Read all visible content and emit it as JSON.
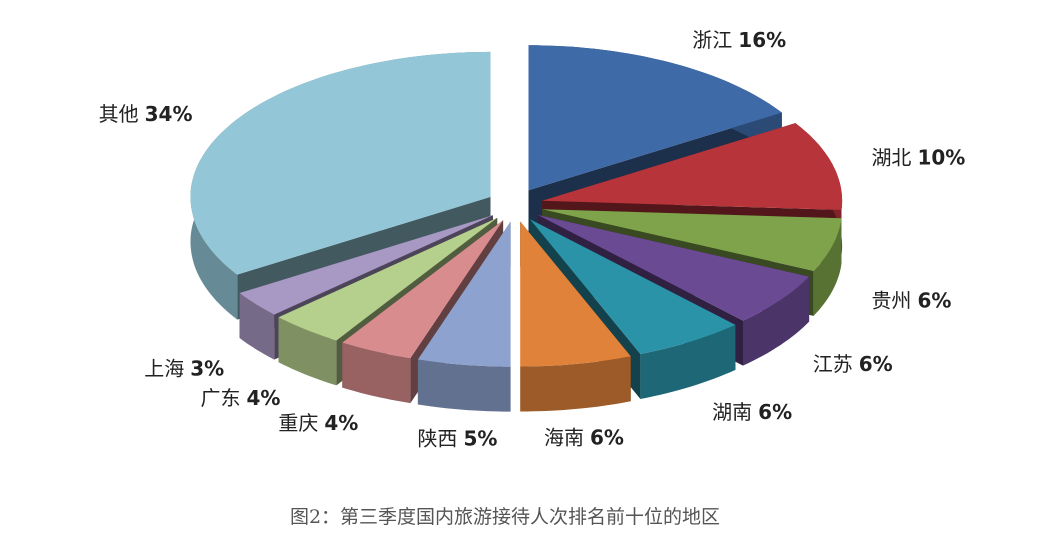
{
  "chart_data": {
    "type": "pie",
    "title": "图2：第三季度国内旅游接待人次排名前十位的地区",
    "categories": [
      "浙江",
      "湖北",
      "贵州",
      "江苏",
      "湖南",
      "海南",
      "陕西",
      "重庆",
      "广东",
      "上海",
      "其他"
    ],
    "values": [
      16,
      10,
      6,
      6,
      6,
      6,
      5,
      4,
      4,
      3,
      34
    ],
    "value_labels": [
      "16%",
      "10%",
      "6%",
      "6%",
      "6%",
      "6%",
      "5%",
      "4%",
      "4%",
      "3%",
      "34%"
    ],
    "colors": [
      "#3f6aa8",
      "#b8343b",
      "#7ea34a",
      "#6b4a94",
      "#2b93a8",
      "#e0823a",
      "#8da2cf",
      "#d98c8e",
      "#b5cf8c",
      "#a898c4",
      "#93c6d6"
    ]
  }
}
